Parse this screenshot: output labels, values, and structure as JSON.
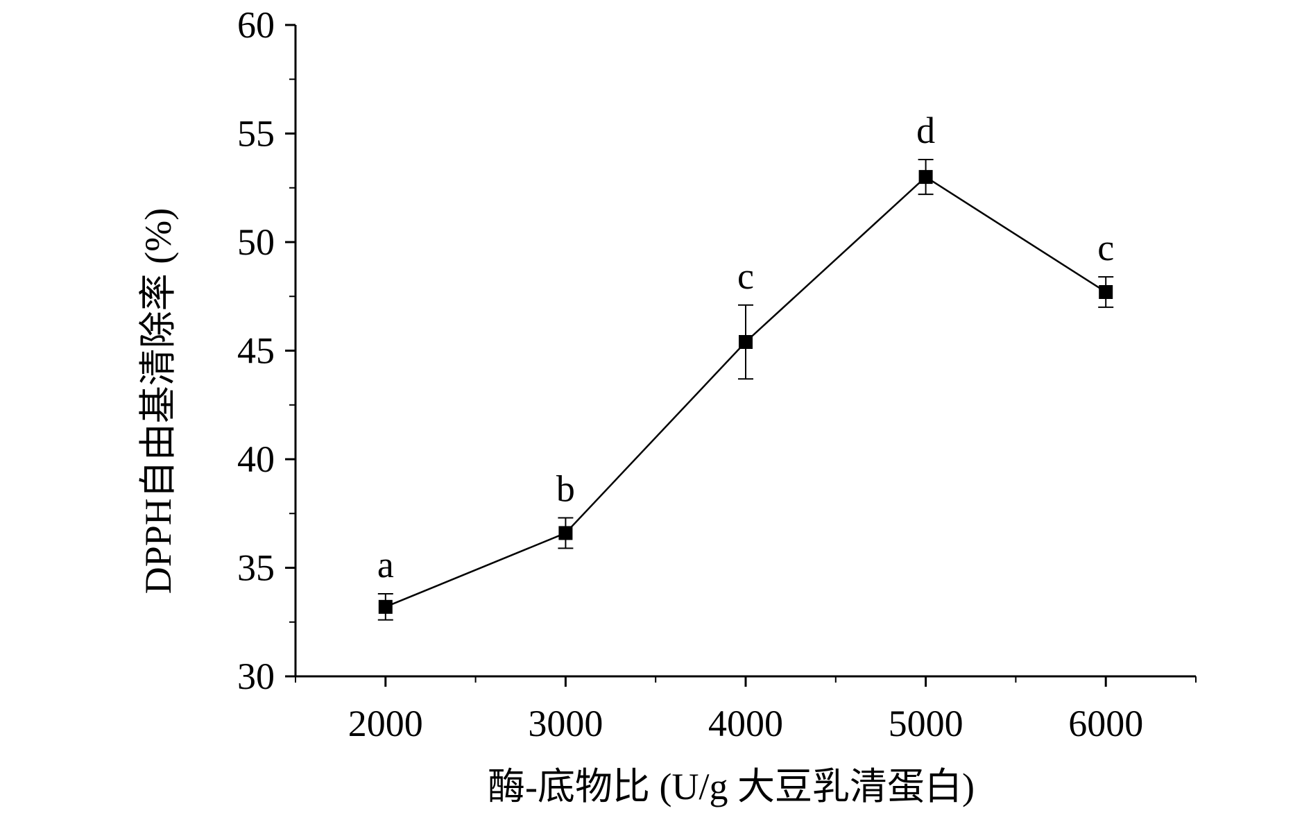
{
  "chart_data": {
    "type": "line",
    "xlabel": "酶-底物比 (U/g 大豆乳清蛋白)",
    "ylabel": "DPPH自由基清除率 (%)",
    "x": [
      2000,
      3000,
      4000,
      5000,
      6000
    ],
    "series": [
      {
        "values": [
          33.2,
          36.6,
          45.4,
          53.0,
          47.7
        ],
        "errors": [
          0.6,
          0.7,
          1.7,
          0.8,
          0.7
        ],
        "annotations": [
          "a",
          "b",
          "c",
          "d",
          "c"
        ]
      }
    ],
    "xlim": [
      1500,
      6500
    ],
    "ylim": [
      30,
      60
    ],
    "xticks": [
      2000,
      3000,
      4000,
      5000,
      6000
    ],
    "xtick_labels": [
      "2000",
      "3000",
      "4000",
      "5000",
      "6000"
    ],
    "yticks": [
      30,
      35,
      40,
      45,
      50,
      55,
      60
    ],
    "ytick_labels": [
      "30",
      "35",
      "40",
      "45",
      "50",
      "55",
      "60"
    ],
    "marker": "square",
    "line_color": "#000000",
    "marker_color": "#000000",
    "grid": false
  }
}
